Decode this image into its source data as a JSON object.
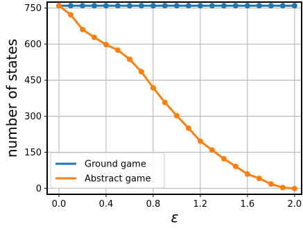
{
  "chart_data": {
    "type": "line",
    "xlabel": "ε",
    "ylabel": "number of states",
    "xlim": [
      -0.1,
      2.06
    ],
    "ylim": [
      -25,
      775
    ],
    "xticks": [
      "0.0",
      "0.4",
      "0.8",
      "1.2",
      "1.6",
      "2.0"
    ],
    "yticks": [
      "0",
      "150",
      "300",
      "450",
      "600",
      "750"
    ],
    "grid": true,
    "legend_position": "lower-left",
    "x": [
      0.0,
      0.1,
      0.2,
      0.3,
      0.4,
      0.5,
      0.6,
      0.7,
      0.8,
      0.9,
      1.0,
      1.1,
      1.2,
      1.3,
      1.4,
      1.5,
      1.6,
      1.7,
      1.8,
      1.9,
      2.0
    ],
    "series": [
      {
        "name": "Ground game",
        "color": "#1f77b4",
        "values": [
          760,
          760,
          760,
          760,
          760,
          760,
          760,
          760,
          760,
          760,
          760,
          760,
          760,
          760,
          760,
          760,
          760,
          760,
          760,
          760,
          760
        ]
      },
      {
        "name": "Abstract game",
        "color": "#ff7f0e",
        "values": [
          760,
          722,
          661,
          628,
          598,
          575,
          537,
          485,
          418,
          357,
          302,
          250,
          196,
          159,
          123,
          91,
          59,
          41,
          18,
          3,
          -1
        ]
      }
    ]
  }
}
